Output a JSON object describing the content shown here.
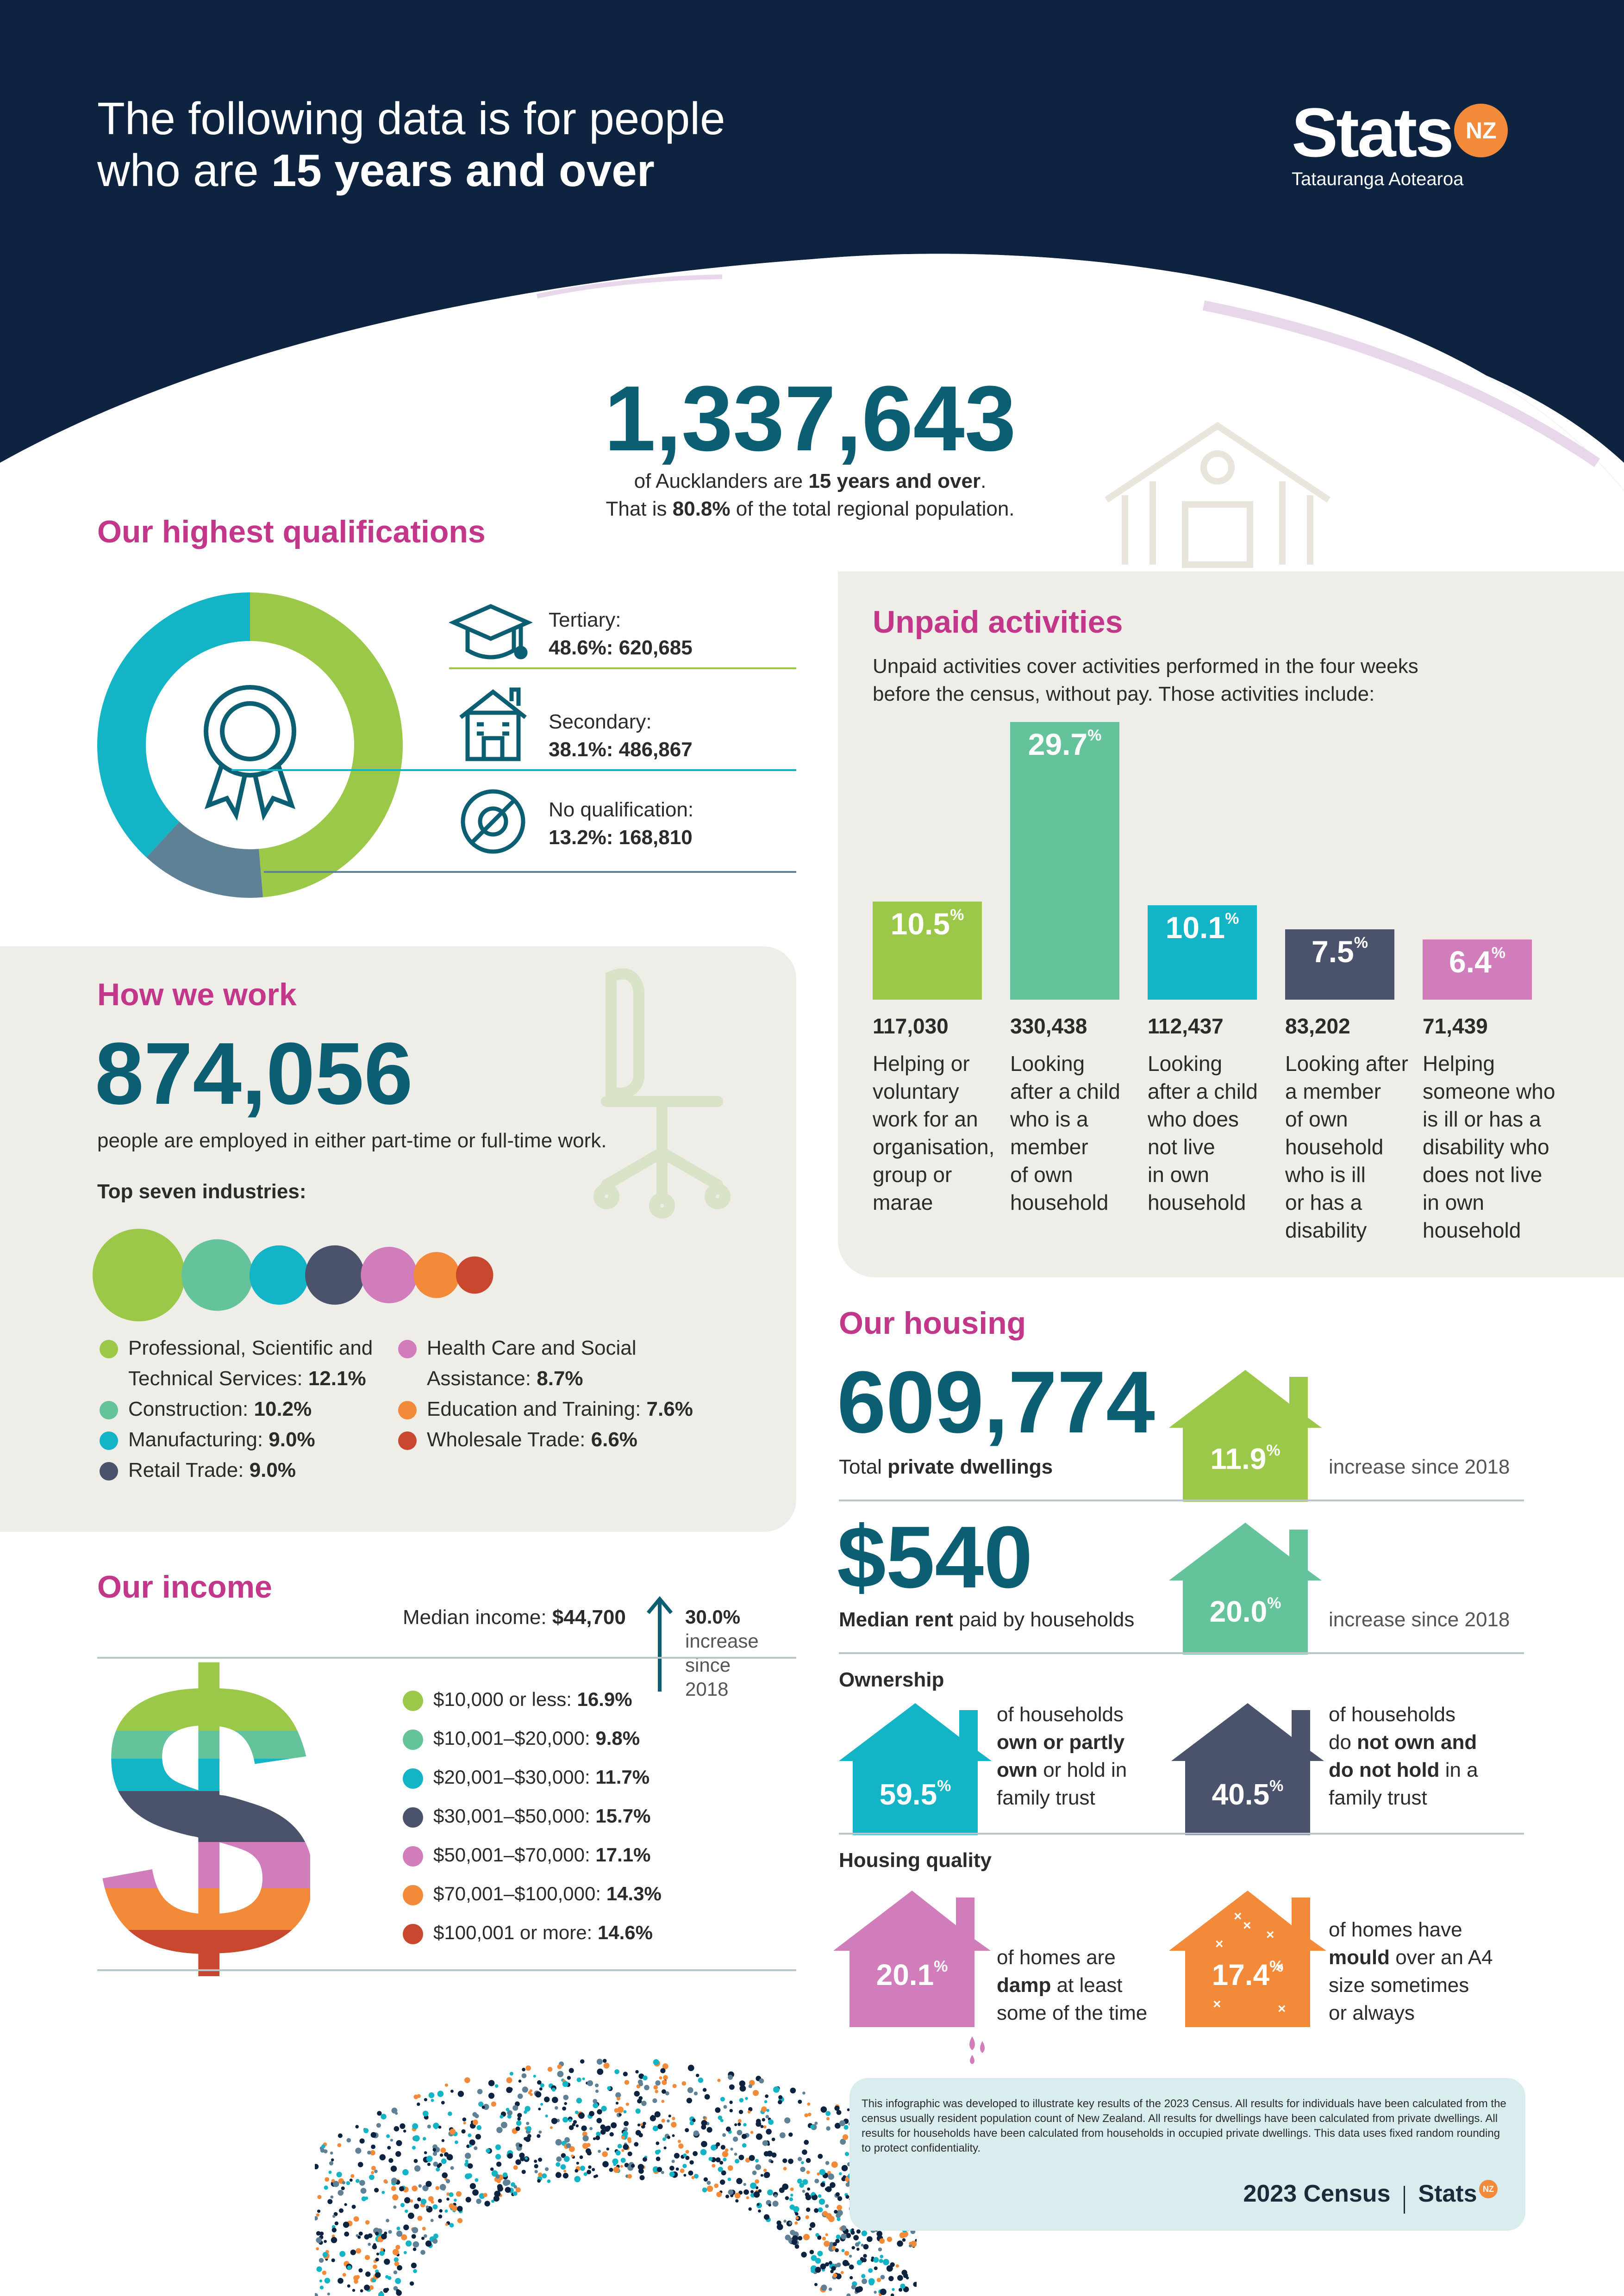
{
  "header": {
    "line1": "The following data is for people",
    "line2_plain": "who are ",
    "line2_bold": "15 years and over",
    "logo_text": "Stats",
    "logo_badge": "NZ",
    "logo_sub": "Tatauranga Aotearoa"
  },
  "intro": {
    "big_number": "1,337,643",
    "line1_a": "of Aucklanders are ",
    "line1_b": "15 years and over",
    "line1_c": ".",
    "line2_a": "That is ",
    "line2_b": "80.8%",
    "line2_c": " of the total regional population."
  },
  "qualifications": {
    "title": "Our highest qualifications",
    "items": [
      {
        "label": "Tertiary:",
        "value": "48.6%: 620,685",
        "pct": 48.6,
        "color": "#9bc848"
      },
      {
        "label": "Secondary:",
        "value": "38.1%: 486,867",
        "pct": 38.1,
        "color": "#12b4c6"
      },
      {
        "label": "No qualification:",
        "value": "13.2%: 168,810",
        "pct": 13.2,
        "color": "#5e8196"
      }
    ]
  },
  "unpaid": {
    "title": "Unpaid activities",
    "desc1": "Unpaid activities cover activities performed in the four weeks",
    "desc2": "before the census, without pay. Those activities include:",
    "bars": [
      {
        "pct": "10.5",
        "value": 10.5,
        "count": "117,030",
        "color": "#9bc848",
        "desc": [
          "Helping or",
          "voluntary",
          "work for an",
          "organisation,",
          "group or",
          "marae"
        ]
      },
      {
        "pct": "29.7",
        "value": 29.7,
        "count": "330,438",
        "color": "#65c39b",
        "desc": [
          "Looking",
          "after a child",
          "who is a",
          "member",
          "of own",
          "household"
        ]
      },
      {
        "pct": "10.1",
        "value": 10.1,
        "count": "112,437",
        "color": "#12b4c6",
        "desc": [
          "Looking",
          "after a child",
          "who does",
          "not live",
          "in own",
          "household"
        ]
      },
      {
        "pct": "7.5",
        "value": 7.5,
        "count": "83,202",
        "color": "#4a536b",
        "desc": [
          "Looking after",
          "a member",
          "of own",
          "household",
          "who is ill",
          "or has a",
          "disability"
        ]
      },
      {
        "pct": "6.4",
        "value": 6.4,
        "count": "71,439",
        "color": "#d17dbb",
        "desc": [
          "Helping",
          "someone who",
          "is ill or has a",
          "disability who",
          "does not live",
          "in own",
          "household"
        ]
      }
    ]
  },
  "work": {
    "title": "How we work",
    "big_number": "874,056",
    "desc": "people are employed in either part-time or full-time work.",
    "top_label": "Top seven industries:",
    "industries": [
      {
        "name_a": "Professional, Scientific and",
        "name_b": "Technical Services: ",
        "pct": "12.1%",
        "value": 12.1,
        "color": "#9bc848"
      },
      {
        "name_a": "",
        "name_b": "Construction: ",
        "pct": "10.2%",
        "value": 10.2,
        "color": "#65c39b"
      },
      {
        "name_a": "",
        "name_b": "Manufacturing: ",
        "pct": "9.0%",
        "value": 9.0,
        "color": "#12b4c6"
      },
      {
        "name_a": "",
        "name_b": "Retail Trade: ",
        "pct": "9.0%",
        "value": 9.0,
        "color": "#4a536b"
      },
      {
        "name_a": "Health Care and Social",
        "name_b": "Assistance: ",
        "pct": "8.7%",
        "value": 8.7,
        "color": "#d17dbb"
      },
      {
        "name_a": "",
        "name_b": "Education and Training: ",
        "pct": "7.6%",
        "value": 7.6,
        "color": "#f28a3a"
      },
      {
        "name_a": "",
        "name_b": "Wholesale Trade: ",
        "pct": "6.6%",
        "value": 6.6,
        "color": "#c9472f"
      }
    ]
  },
  "income": {
    "title": "Our income",
    "median_label": "Median income: ",
    "median_value": "$44,700",
    "increase_pct": "30.0%",
    "increase_lines": [
      "increase",
      "since",
      "2018"
    ],
    "bands": [
      {
        "label": "$10,000 or less: ",
        "pct": "16.9%",
        "color": "#9bc848"
      },
      {
        "label": "$10,001–$20,000: ",
        "pct": "9.8%",
        "color": "#65c39b"
      },
      {
        "label": "$20,001–$30,000: ",
        "pct": "11.7%",
        "color": "#12b4c6"
      },
      {
        "label": "$30,001–$50,000: ",
        "pct": "15.7%",
        "color": "#4a536b"
      },
      {
        "label": "$50,001–$70,000: ",
        "pct": "17.1%",
        "color": "#d17dbb"
      },
      {
        "label": "$70,001–$100,000: ",
        "pct": "14.3%",
        "color": "#f28a3a"
      },
      {
        "label": "$100,001 or more: ",
        "pct": "14.6%",
        "color": "#c9472f"
      }
    ]
  },
  "housing": {
    "title": "Our housing",
    "dwellings_number": "609,774",
    "dwellings_label_a": "Total ",
    "dwellings_label_b": "private dwellings",
    "dwellings_increase": "11.9",
    "dwellings_increase_text": "increase since 2018",
    "rent_number": "$540",
    "rent_label_a": "Median rent",
    "rent_label_b": " paid by households",
    "rent_increase": "20.0",
    "rent_increase_text": "increase since 2018",
    "ownership_label": "Ownership",
    "own_pct": "59.5",
    "own_text": [
      "of households",
      "own or partly",
      "own",
      " or hold in",
      "family trust"
    ],
    "notown_pct": "40.5",
    "notown_text": [
      "of households",
      "do ",
      "not own and",
      "do not hold",
      " in a",
      "family trust"
    ],
    "quality_label": "Housing quality",
    "damp_pct": "20.1",
    "damp_text": [
      "of homes are",
      "damp",
      " at least",
      "some of the time"
    ],
    "mould_pct": "17.4",
    "mould_text": [
      "of homes have",
      "mould",
      " over an A4",
      "size sometimes",
      "or always"
    ]
  },
  "footer": {
    "note": "This infographic was developed to illustrate key results of the 2023 Census. All results for individuals have been calculated from the census usually resident population count of New Zealand. All results for dwellings have been calculated from private dwellings. All results for households have been calculated from households in occupied private dwellings. This data uses fixed random rounding to protect confidentiality.",
    "census": "2023 Census",
    "logo_text": "Stats",
    "logo_badge": "NZ"
  }
}
